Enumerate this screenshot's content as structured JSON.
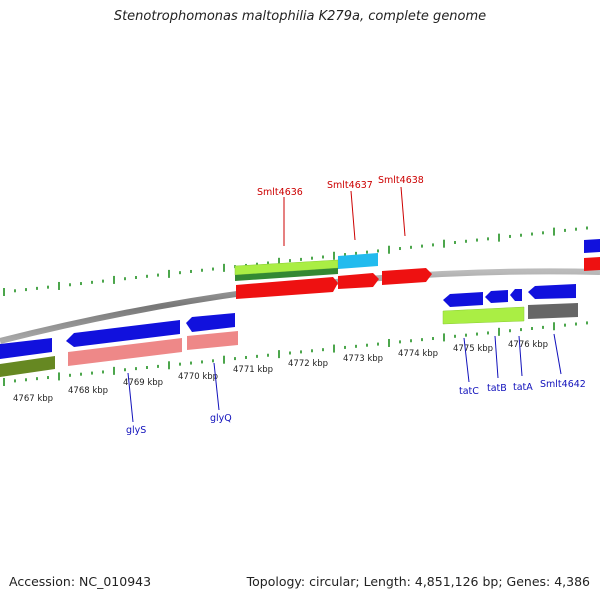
{
  "title": "Stenotrophomonas maltophilia K279a, complete genome",
  "footer": {
    "accession": "Accession: NC_010943",
    "summary": "Topology: circular; Length: 4,851,126 bp; Genes: 4,386"
  },
  "colors": {
    "red": "#ee1111",
    "blue": "#1111dd",
    "cyan": "#22bbee",
    "lightgreen": "#aaee44",
    "darkgreen": "#338833",
    "olive": "#668822",
    "pink": "#ee8888",
    "gray": "#666666",
    "tick": "#118811",
    "backbone": "#888888",
    "label_red": "#cc0000",
    "label_blue": "#1111bb"
  },
  "kbp_labels": [
    "4767 kbp",
    "4768 kbp",
    "4769 kbp",
    "4770 kbp",
    "4771 kbp",
    "4772 kbp",
    "4773 kbp",
    "4774 kbp",
    "4775 kbp",
    "4776 kbp"
  ],
  "gene_labels_top": [
    "Smlt4636",
    "Smlt4637",
    "Smlt4638"
  ],
  "gene_labels_bottom": [
    "glyS",
    "glyQ",
    "tatC",
    "tatB",
    "tatA",
    "Smlt4642"
  ]
}
